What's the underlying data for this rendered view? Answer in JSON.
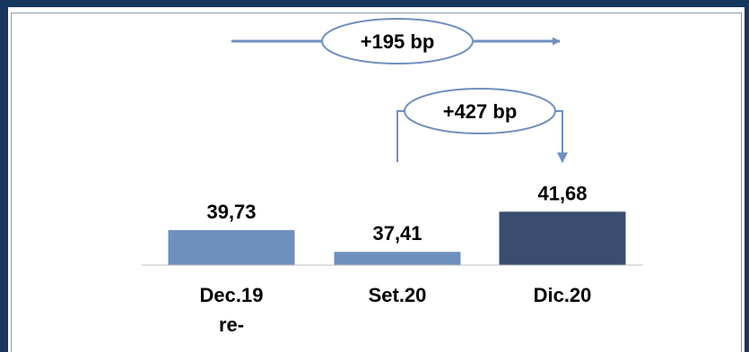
{
  "chart_data": {
    "type": "bar",
    "categories": [
      "Dec.19 re-",
      "Set.20",
      "Dic.20"
    ],
    "values": [
      39.73,
      37.41,
      41.68
    ],
    "value_labels": [
      "39,73",
      "37,41",
      "41,68"
    ],
    "colors": [
      "#6f8fbe",
      "#6f8fbe",
      "#3a4d6e"
    ],
    "title": "",
    "xlabel": "",
    "ylabel": "",
    "grid": false,
    "annotations": [
      {
        "text": "+195 bp",
        "from": "Dec.19 re-",
        "to": "Dic.20"
      },
      {
        "text": "+427 bp",
        "from": "Set.20",
        "to": "Dic.20"
      }
    ]
  },
  "frame_color": "#17375e",
  "arrow_color": "#6f8fbe",
  "baseline_color": "#bfbfbf"
}
